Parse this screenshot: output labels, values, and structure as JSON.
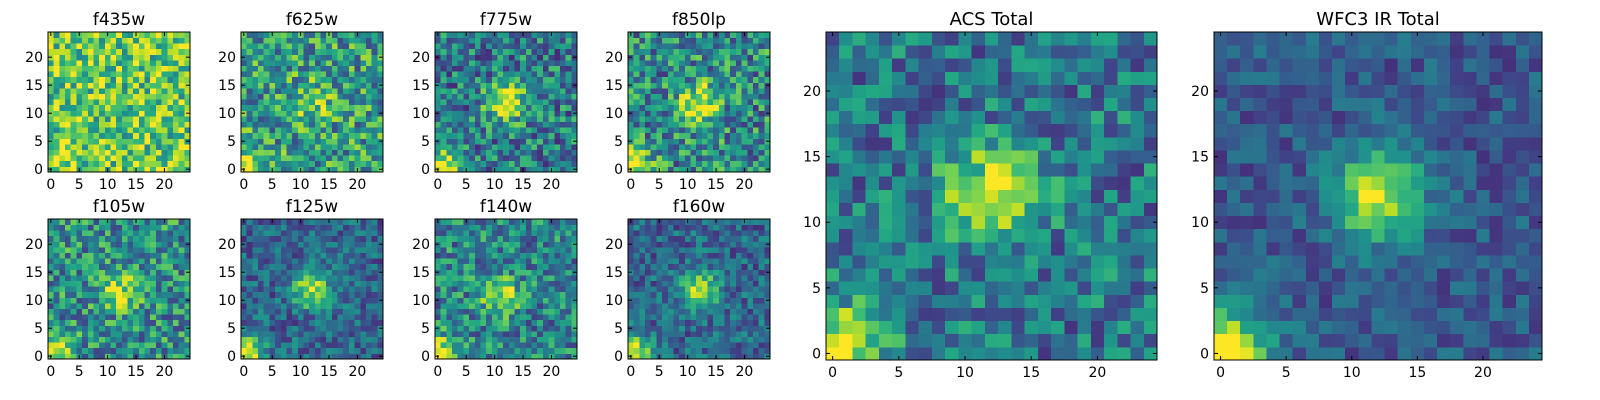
{
  "chart_data": [
    {
      "type": "heatmap",
      "title": "f435w",
      "colormap": "viridis",
      "xlim": [
        0,
        24
      ],
      "ylim": [
        0,
        24
      ],
      "xticks": [
        0,
        5,
        10,
        15,
        20
      ],
      "yticks": [
        0,
        5,
        10,
        15,
        20
      ],
      "source_center": null,
      "source_strength": 0.0,
      "corner_strength": 0.2,
      "background": 0.74,
      "noise": 0.3
    },
    {
      "type": "heatmap",
      "title": "f625w",
      "colormap": "viridis",
      "xlim": [
        0,
        24
      ],
      "ylim": [
        0,
        24
      ],
      "xticks": [
        0,
        5,
        10,
        15,
        20
      ],
      "yticks": [
        0,
        5,
        10,
        15,
        20
      ],
      "source_center": [
        12,
        12
      ],
      "source_strength": 0.3,
      "corner_strength": 0.45,
      "background": 0.55,
      "noise": 0.32
    },
    {
      "type": "heatmap",
      "title": "f775w",
      "colormap": "viridis",
      "xlim": [
        0,
        24
      ],
      "ylim": [
        0,
        24
      ],
      "xticks": [
        0,
        5,
        10,
        15,
        20
      ],
      "yticks": [
        0,
        5,
        10,
        15,
        20
      ],
      "source_center": [
        12,
        12
      ],
      "source_strength": 0.55,
      "corner_strength": 0.6,
      "background": 0.42,
      "noise": 0.3
    },
    {
      "type": "heatmap",
      "title": "f850lp",
      "colormap": "viridis",
      "xlim": [
        0,
        24
      ],
      "ylim": [
        0,
        24
      ],
      "xticks": [
        0,
        5,
        10,
        15,
        20
      ],
      "yticks": [
        0,
        5,
        10,
        15,
        20
      ],
      "source_center": [
        12,
        12
      ],
      "source_strength": 0.5,
      "corner_strength": 0.5,
      "background": 0.48,
      "noise": 0.32
    },
    {
      "type": "heatmap",
      "title": "f105w",
      "colormap": "viridis",
      "xlim": [
        0,
        24
      ],
      "ylim": [
        0,
        24
      ],
      "xticks": [
        0,
        5,
        10,
        15,
        20
      ],
      "yticks": [
        0,
        5,
        10,
        15,
        20
      ],
      "source_center": [
        12,
        12
      ],
      "source_strength": 0.4,
      "corner_strength": 0.5,
      "background": 0.5,
      "noise": 0.3
    },
    {
      "type": "heatmap",
      "title": "f125w",
      "colormap": "viridis",
      "xlim": [
        0,
        24
      ],
      "ylim": [
        0,
        24
      ],
      "xticks": [
        0,
        5,
        10,
        15,
        20
      ],
      "yticks": [
        0,
        5,
        10,
        15,
        20
      ],
      "source_center": [
        12,
        12
      ],
      "source_strength": 0.55,
      "corner_strength": 0.7,
      "background": 0.33,
      "noise": 0.2
    },
    {
      "type": "heatmap",
      "title": "f140w",
      "colormap": "viridis",
      "xlim": [
        0,
        24
      ],
      "ylim": [
        0,
        24
      ],
      "xticks": [
        0,
        5,
        10,
        15,
        20
      ],
      "yticks": [
        0,
        5,
        10,
        15,
        20
      ],
      "source_center": [
        11,
        11
      ],
      "source_strength": 0.45,
      "corner_strength": 0.5,
      "background": 0.45,
      "noise": 0.28
    },
    {
      "type": "heatmap",
      "title": "f160w",
      "colormap": "viridis",
      "xlim": [
        0,
        24
      ],
      "ylim": [
        0,
        24
      ],
      "xticks": [
        0,
        5,
        10,
        15,
        20
      ],
      "yticks": [
        0,
        5,
        10,
        15,
        20
      ],
      "source_center": [
        12,
        12
      ],
      "source_strength": 0.55,
      "corner_strength": 0.7,
      "background": 0.33,
      "noise": 0.2
    },
    {
      "type": "heatmap",
      "title": "ACS Total",
      "colormap": "viridis",
      "xlim": [
        0,
        24
      ],
      "ylim": [
        0,
        24
      ],
      "xticks": [
        0,
        5,
        10,
        15,
        20
      ],
      "yticks": [
        0,
        5,
        10,
        15,
        20
      ],
      "source_center": [
        12,
        12
      ],
      "source_strength": 0.6,
      "corner_strength": 0.65,
      "background": 0.4,
      "noise": 0.25
    },
    {
      "type": "heatmap",
      "title": "WFC3 IR Total",
      "colormap": "viridis",
      "xlim": [
        0,
        24
      ],
      "ylim": [
        0,
        24
      ],
      "xticks": [
        0,
        5,
        10,
        15,
        20
      ],
      "yticks": [
        0,
        5,
        10,
        15,
        20
      ],
      "source_center": [
        12,
        12
      ],
      "source_strength": 0.65,
      "corner_strength": 0.75,
      "background": 0.28,
      "noise": 0.14
    }
  ]
}
